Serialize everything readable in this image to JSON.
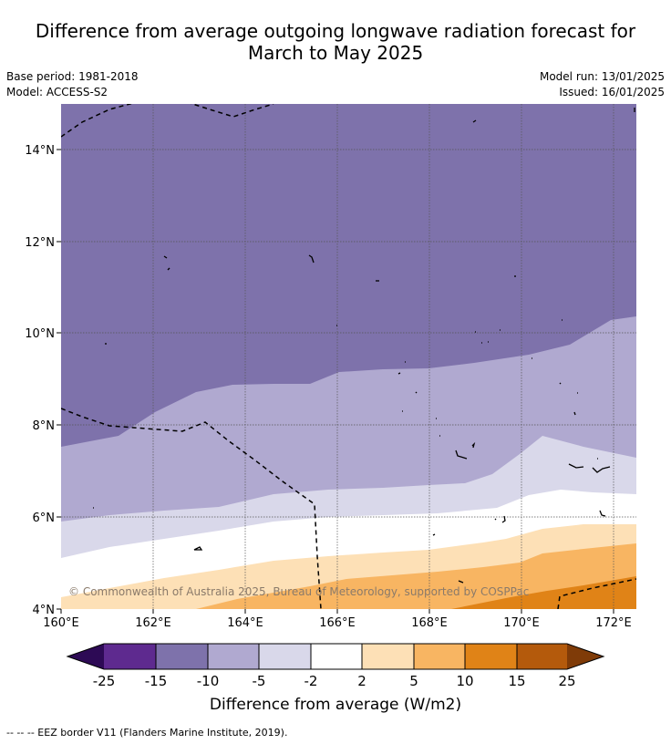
{
  "title_line1": "Difference from average outgoing longwave radiation forecast for",
  "title_line2": "March to May 2025",
  "base_period": "Base period: 1981-2018",
  "model": "Model: ACCESS-S2",
  "model_run": "Model run: 13/01/2025",
  "issued": "Issued: 16/01/2025",
  "copyright": "© Commonwealth of Australia 2025, Bureau of Meteorology, supported by COSPPac",
  "lat_labels": [
    "14°N",
    "12°N",
    "10°N",
    "8°N",
    "6°N",
    "4°N"
  ],
  "lon_labels": [
    "160°E",
    "162°E",
    "164°E",
    "166°E",
    "168°E",
    "170°E",
    "172°E"
  ],
  "colorbar": {
    "label": "Difference from average (W/m2)",
    "ticks": [
      "-25",
      "-15",
      "-10",
      "-5",
      "-2",
      "2",
      "5",
      "10",
      "15",
      "25"
    ],
    "colors": {
      "below_min": "#2d0a55",
      "c1": "#5e2a8f",
      "c2": "#7e72ab",
      "c3": "#b0a9d0",
      "c4": "#d9d8ea",
      "c5": "#ffffff",
      "c6": "#fde0b6",
      "c7": "#f8b562",
      "c8": "#e08317",
      "c9": "#b45a0c",
      "above_max": "#7f3b08"
    }
  },
  "footnote": "-- -- -- EEZ border V11 (Flanders Marine Institute, 2019)."
}
